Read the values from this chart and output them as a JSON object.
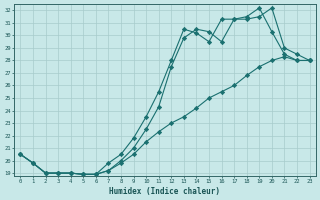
{
  "xlabel": "Humidex (Indice chaleur)",
  "background_color": "#c8e8e8",
  "line_color": "#1a7070",
  "grid_color": "#a8cccc",
  "xlim": [
    -0.5,
    23.5
  ],
  "ylim": [
    18.8,
    32.5
  ],
  "xticks": [
    0,
    1,
    2,
    3,
    4,
    5,
    6,
    7,
    8,
    9,
    10,
    11,
    12,
    13,
    14,
    15,
    16,
    17,
    18,
    19,
    20,
    21,
    22,
    23
  ],
  "yticks": [
    19,
    20,
    21,
    22,
    23,
    24,
    25,
    26,
    27,
    28,
    29,
    30,
    31,
    32
  ],
  "line1_x": [
    0,
    1,
    2,
    3,
    4,
    5,
    6,
    7,
    8,
    9,
    10,
    11,
    12,
    13,
    14,
    15,
    16,
    17,
    18,
    19,
    20,
    21,
    22,
    23
  ],
  "line1_y": [
    20.5,
    19.8,
    19.0,
    19.0,
    19.0,
    18.9,
    18.9,
    19.2,
    20.0,
    21.0,
    22.5,
    24.3,
    27.5,
    29.8,
    30.5,
    30.3,
    29.5,
    31.3,
    31.3,
    31.5,
    32.2,
    29.0,
    28.5,
    28.0
  ],
  "line2_x": [
    0,
    1,
    2,
    3,
    4,
    5,
    6,
    7,
    8,
    9,
    10,
    11,
    12,
    13,
    14,
    15,
    16,
    17,
    18,
    19,
    20,
    21,
    22,
    23
  ],
  "line2_y": [
    20.5,
    19.8,
    19.0,
    19.0,
    19.0,
    18.9,
    18.9,
    19.8,
    20.5,
    21.8,
    23.5,
    25.5,
    28.0,
    30.5,
    30.2,
    29.5,
    31.3,
    31.3,
    31.5,
    32.2,
    30.3,
    28.5,
    28.0,
    28.0
  ],
  "line3_x": [
    0,
    1,
    2,
    3,
    4,
    5,
    6,
    7,
    8,
    9,
    10,
    11,
    12,
    13,
    14,
    15,
    16,
    17,
    18,
    19,
    20,
    21,
    22,
    23
  ],
  "line3_y": [
    20.5,
    19.8,
    19.0,
    19.0,
    19.0,
    18.9,
    18.9,
    19.2,
    19.8,
    20.5,
    21.5,
    22.3,
    23.0,
    23.5,
    24.2,
    25.0,
    25.5,
    26.0,
    26.8,
    27.5,
    28.0,
    28.3,
    28.0,
    28.0
  ]
}
